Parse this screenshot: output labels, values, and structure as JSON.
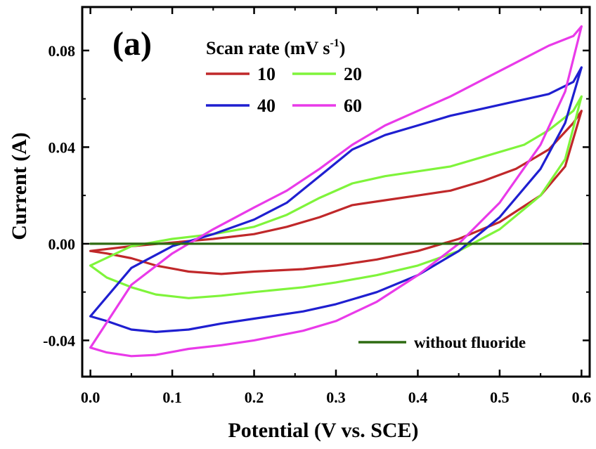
{
  "chart_data": {
    "type": "line",
    "panel_label": "(a)",
    "xlabel": "Potential (V vs. SCE)",
    "ylabel": "Current (A)",
    "xlim": [
      -0.01,
      0.61
    ],
    "ylim": [
      -0.055,
      0.098
    ],
    "x_ticks": [
      "0.0",
      "0.1",
      "0.2",
      "0.3",
      "0.4",
      "0.5",
      "0.6"
    ],
    "y_ticks": [
      "-0.04",
      "0.00",
      "0.04",
      "0.08"
    ],
    "legend_title_main": "Scan rate (mV s",
    "legend_title_sup": "-1",
    "legend_title_close": ")",
    "legend_placement": "top-left",
    "grid": false,
    "series": [
      {
        "name": "10",
        "color": "#c0282a",
        "points": [
          [
            0.0,
            -0.003
          ],
          [
            0.02,
            -0.004
          ],
          [
            0.05,
            -0.006
          ],
          [
            0.08,
            -0.009
          ],
          [
            0.12,
            -0.0115
          ],
          [
            0.16,
            -0.0125
          ],
          [
            0.2,
            -0.0115
          ],
          [
            0.26,
            -0.0105
          ],
          [
            0.3,
            -0.009
          ],
          [
            0.35,
            -0.0065
          ],
          [
            0.4,
            -0.003
          ],
          [
            0.45,
            0.002
          ],
          [
            0.5,
            0.009
          ],
          [
            0.55,
            0.02
          ],
          [
            0.58,
            0.032
          ],
          [
            0.6,
            0.055
          ],
          [
            0.59,
            0.05
          ],
          [
            0.56,
            0.039
          ],
          [
            0.52,
            0.031
          ],
          [
            0.48,
            0.026
          ],
          [
            0.44,
            0.022
          ],
          [
            0.4,
            0.02
          ],
          [
            0.36,
            0.018
          ],
          [
            0.32,
            0.016
          ],
          [
            0.28,
            0.011
          ],
          [
            0.24,
            0.007
          ],
          [
            0.2,
            0.004
          ],
          [
            0.15,
            0.002
          ],
          [
            0.1,
            0.0005
          ],
          [
            0.05,
            -0.001
          ],
          [
            0.0,
            -0.003
          ]
        ]
      },
      {
        "name": "20",
        "color": "#7ff43b",
        "points": [
          [
            0.0,
            -0.009
          ],
          [
            0.02,
            -0.014
          ],
          [
            0.05,
            -0.018
          ],
          [
            0.08,
            -0.021
          ],
          [
            0.12,
            -0.0225
          ],
          [
            0.16,
            -0.0215
          ],
          [
            0.2,
            -0.02
          ],
          [
            0.26,
            -0.018
          ],
          [
            0.3,
            -0.016
          ],
          [
            0.35,
            -0.013
          ],
          [
            0.4,
            -0.009
          ],
          [
            0.45,
            -0.003
          ],
          [
            0.5,
            0.006
          ],
          [
            0.55,
            0.02
          ],
          [
            0.58,
            0.035
          ],
          [
            0.6,
            0.061
          ],
          [
            0.59,
            0.055
          ],
          [
            0.56,
            0.047
          ],
          [
            0.53,
            0.041
          ],
          [
            0.48,
            0.036
          ],
          [
            0.44,
            0.032
          ],
          [
            0.4,
            0.03
          ],
          [
            0.36,
            0.028
          ],
          [
            0.32,
            0.025
          ],
          [
            0.28,
            0.019
          ],
          [
            0.24,
            0.012
          ],
          [
            0.2,
            0.007
          ],
          [
            0.15,
            0.004
          ],
          [
            0.1,
            0.002
          ],
          [
            0.05,
            -0.001
          ],
          [
            0.0,
            -0.009
          ]
        ]
      },
      {
        "name": "40",
        "color": "#1f1fd0",
        "points": [
          [
            0.0,
            -0.03
          ],
          [
            0.02,
            -0.032
          ],
          [
            0.05,
            -0.0355
          ],
          [
            0.08,
            -0.0365
          ],
          [
            0.12,
            -0.0355
          ],
          [
            0.16,
            -0.033
          ],
          [
            0.2,
            -0.031
          ],
          [
            0.26,
            -0.028
          ],
          [
            0.3,
            -0.025
          ],
          [
            0.35,
            -0.02
          ],
          [
            0.4,
            -0.013
          ],
          [
            0.45,
            -0.003
          ],
          [
            0.5,
            0.011
          ],
          [
            0.55,
            0.031
          ],
          [
            0.58,
            0.05
          ],
          [
            0.6,
            0.073
          ],
          [
            0.59,
            0.067
          ],
          [
            0.56,
            0.062
          ],
          [
            0.52,
            0.059
          ],
          [
            0.48,
            0.056
          ],
          [
            0.44,
            0.053
          ],
          [
            0.4,
            0.049
          ],
          [
            0.36,
            0.045
          ],
          [
            0.32,
            0.039
          ],
          [
            0.28,
            0.028
          ],
          [
            0.24,
            0.017
          ],
          [
            0.2,
            0.01
          ],
          [
            0.15,
            0.004
          ],
          [
            0.1,
            -0.001
          ],
          [
            0.05,
            -0.01
          ],
          [
            0.0,
            -0.03
          ]
        ]
      },
      {
        "name": "60",
        "color": "#e93ae9",
        "points": [
          [
            0.0,
            -0.043
          ],
          [
            0.02,
            -0.045
          ],
          [
            0.05,
            -0.0465
          ],
          [
            0.08,
            -0.046
          ],
          [
            0.12,
            -0.0435
          ],
          [
            0.16,
            -0.042
          ],
          [
            0.2,
            -0.04
          ],
          [
            0.26,
            -0.036
          ],
          [
            0.3,
            -0.032
          ],
          [
            0.35,
            -0.024
          ],
          [
            0.4,
            -0.013
          ],
          [
            0.45,
            0.0
          ],
          [
            0.5,
            0.017
          ],
          [
            0.55,
            0.041
          ],
          [
            0.58,
            0.063
          ],
          [
            0.6,
            0.09
          ],
          [
            0.59,
            0.086
          ],
          [
            0.56,
            0.082
          ],
          [
            0.52,
            0.075
          ],
          [
            0.48,
            0.068
          ],
          [
            0.44,
            0.061
          ],
          [
            0.4,
            0.055
          ],
          [
            0.36,
            0.049
          ],
          [
            0.32,
            0.041
          ],
          [
            0.28,
            0.031
          ],
          [
            0.24,
            0.022
          ],
          [
            0.2,
            0.015
          ],
          [
            0.15,
            0.006
          ],
          [
            0.1,
            -0.004
          ],
          [
            0.05,
            -0.017
          ],
          [
            0.0,
            -0.043
          ]
        ]
      },
      {
        "name": "without fluoride",
        "color": "#2e6b12",
        "points": [
          [
            0.0,
            0.0
          ],
          [
            0.6,
            0.0
          ]
        ]
      }
    ]
  }
}
